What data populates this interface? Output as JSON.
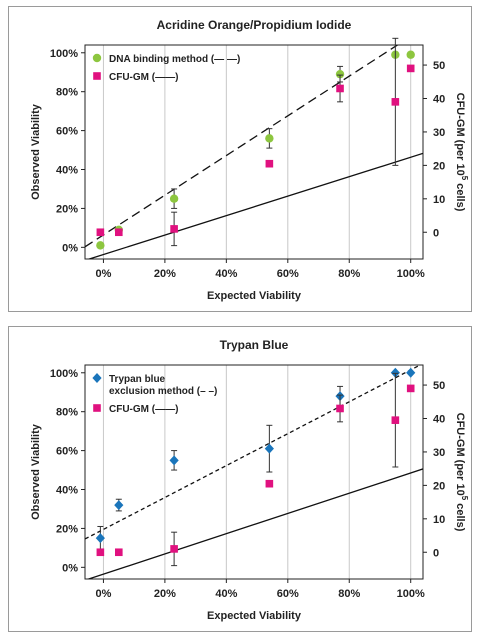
{
  "chart_data": [
    {
      "type": "scatter",
      "title": "Acridine Orange/Propidium Iodide",
      "xlabel": "Expected Viability",
      "ylabel": "Observed Viability",
      "y2label_main": "CFU-GM (per 10",
      "y2label_sup": "5",
      "y2label_tail": " cells)",
      "xlim": [
        -6,
        104
      ],
      "ylim": [
        -6,
        104
      ],
      "y2lim": [
        -8,
        56
      ],
      "xticks": [
        "0%",
        "20%",
        "40%",
        "60%",
        "80%",
        "100%"
      ],
      "yticks": [
        "0%",
        "20%",
        "40%",
        "60%",
        "80%",
        "100%"
      ],
      "y2ticks": [
        "0",
        "10",
        "20",
        "30",
        "40",
        "50"
      ],
      "grid": "vertical",
      "legend_position": "top-left",
      "legend": [
        {
          "label": "DNA binding method (— —)",
          "marker": "circle",
          "color": "#8dc63f"
        },
        {
          "label": "CFU-GM (——)",
          "marker": "square",
          "color": "#e0117f"
        }
      ],
      "series": [
        {
          "name": "DNA binding method",
          "marker": "circle",
          "color": "#8dc63f",
          "axis": "left",
          "points": [
            [
              -1,
              1
            ],
            [
              5,
              9
            ],
            [
              23,
              25
            ],
            [
              54,
              56
            ],
            [
              77,
              89
            ],
            [
              95,
              99
            ],
            [
              100,
              99
            ]
          ],
          "errors": [
            0,
            0,
            5,
            5,
            4,
            0,
            0
          ],
          "fit": {
            "style": "dashed",
            "slope": 1.02,
            "intercept": 6.4
          }
        },
        {
          "name": "CFU-GM",
          "marker": "square",
          "color": "#e0117f",
          "axis": "right",
          "points": [
            [
              -1,
              0
            ],
            [
              5,
              0
            ],
            [
              23,
              1
            ],
            [
              54,
              20.5
            ],
            [
              77,
              43
            ],
            [
              95,
              39
            ],
            [
              100,
              49
            ]
          ],
          "errors": [
            0,
            0,
            5,
            0,
            4,
            19,
            0
          ],
          "fit": {
            "style": "solid",
            "slope": 0.5,
            "intercept": -3.7
          }
        }
      ]
    },
    {
      "type": "scatter",
      "title": "Trypan Blue",
      "xlabel": "Expected Viability",
      "ylabel": "Observed Viability",
      "y2label_main": "CFU-GM (per 10",
      "y2label_sup": "5",
      "y2label_tail": " cells)",
      "xlim": [
        -6,
        104
      ],
      "ylim": [
        -6,
        104
      ],
      "y2lim": [
        -8,
        56
      ],
      "xticks": [
        "0%",
        "20%",
        "40%",
        "60%",
        "80%",
        "100%"
      ],
      "yticks": [
        "0%",
        "20%",
        "40%",
        "60%",
        "80%",
        "100%"
      ],
      "y2ticks": [
        "0",
        "10",
        "20",
        "30",
        "40",
        "50"
      ],
      "grid": "vertical",
      "legend_position": "top-left",
      "legend": [
        {
          "label": "Trypan blue",
          "label2": "exclusion method (– –)",
          "marker": "diamond",
          "color": "#1a75bb"
        },
        {
          "label": "CFU-GM (——)",
          "marker": "square",
          "color": "#e0117f"
        }
      ],
      "series": [
        {
          "name": "Trypan blue exclusion method",
          "marker": "diamond",
          "color": "#1a75bb",
          "axis": "left",
          "points": [
            [
              -1,
              15
            ],
            [
              5,
              32
            ],
            [
              23,
              55
            ],
            [
              54,
              61
            ],
            [
              77,
              88
            ],
            [
              95,
              100
            ],
            [
              100,
              100
            ]
          ],
          "errors": [
            6,
            3,
            5,
            12,
            5,
            0,
            0
          ],
          "fit": {
            "style": "dotted",
            "slope": 0.82,
            "intercept": 19.5
          }
        },
        {
          "name": "CFU-GM",
          "marker": "square",
          "color": "#e0117f",
          "axis": "right",
          "points": [
            [
              -1,
              0
            ],
            [
              5,
              0
            ],
            [
              23,
              1
            ],
            [
              54,
              20.5
            ],
            [
              77,
              43
            ],
            [
              95,
              39.5
            ],
            [
              100,
              49
            ]
          ],
          "errors": [
            0,
            0,
            5,
            0,
            4,
            14,
            0
          ],
          "fit": {
            "style": "solid",
            "slope": 0.52,
            "intercept": -3.5
          }
        }
      ]
    }
  ]
}
